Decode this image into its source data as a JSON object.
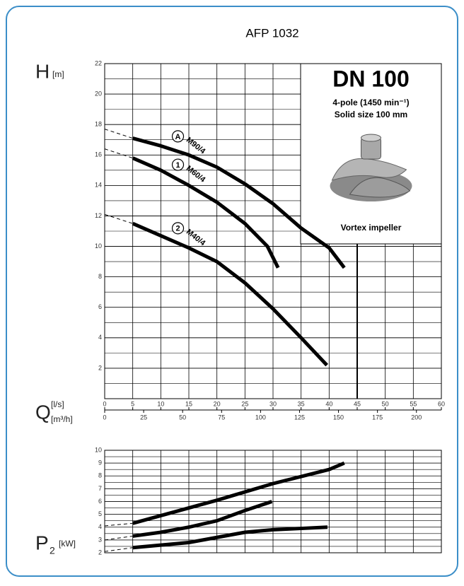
{
  "chart_data": [
    {
      "type": "line",
      "title": "AFP 1032",
      "y_label": "H",
      "y_unit": "[m]",
      "x_label": "Q",
      "x_unit": "[l/s]",
      "x2_unit": "[m³/h]",
      "xlim": [
        0,
        60
      ],
      "xticks": [
        0,
        5,
        10,
        15,
        20,
        25,
        30,
        35,
        40,
        45,
        50,
        55,
        60
      ],
      "x2lim": [
        0,
        216
      ],
      "x2ticks": [
        0,
        25,
        50,
        75,
        100,
        125,
        150,
        175,
        200
      ],
      "ylim": [
        0,
        22
      ],
      "yticks": [
        2,
        4,
        6,
        8,
        10,
        12,
        14,
        16,
        18,
        20,
        22
      ],
      "grid": true,
      "limit_x": 45,
      "box": {
        "title": "DN 100",
        "subtitle": "4-pole (1450 min⁻¹)",
        "detail": "Solid size 100 mm",
        "caption": "Vortex impeller"
      },
      "series": [
        {
          "name": "M90/4",
          "marker": "A",
          "color": "#000000",
          "x": [
            0,
            5,
            10,
            15,
            20,
            25,
            30,
            35,
            40,
            42.7
          ],
          "values": [
            17.7,
            17.1,
            16.6,
            16,
            15.2,
            14.1,
            12.8,
            11.2,
            9.9,
            8.6
          ]
        },
        {
          "name": "M60/4",
          "marker": "1",
          "color": "#000000",
          "x": [
            0,
            5,
            10,
            15,
            20,
            25,
            29,
            30.9
          ],
          "values": [
            16.4,
            15.8,
            15,
            14,
            12.9,
            11.5,
            10,
            8.6
          ]
        },
        {
          "name": "M40/4",
          "marker": "2",
          "color": "#000000",
          "x": [
            0,
            5,
            10,
            15,
            20,
            25,
            30,
            35,
            39.6
          ],
          "values": [
            12.1,
            11.5,
            10.7,
            9.9,
            9,
            7.6,
            5.9,
            4,
            2.2
          ]
        }
      ]
    },
    {
      "type": "line",
      "y_label": "P",
      "y_sub": "2",
      "y_unit": "[kW]",
      "xlim": [
        0,
        60
      ],
      "ylim": [
        2,
        10
      ],
      "yticks": [
        2,
        3,
        4,
        5,
        6,
        7,
        8,
        9,
        10
      ],
      "grid": true,
      "series": [
        {
          "color": "#000000",
          "x": [
            0,
            5,
            10,
            20,
            30,
            40,
            42.7
          ],
          "values": [
            4.1,
            4.3,
            4.9,
            6.1,
            7.4,
            8.5,
            9
          ]
        },
        {
          "color": "#000000",
          "x": [
            0,
            5,
            10,
            15,
            20,
            25,
            29.8
          ],
          "values": [
            3,
            3.3,
            3.6,
            4,
            4.5,
            5.3,
            6
          ]
        },
        {
          "color": "#000000",
          "x": [
            0,
            5,
            10,
            15,
            20,
            25,
            30,
            35,
            39.7
          ],
          "values": [
            2.1,
            2.4,
            2.6,
            2.8,
            3.2,
            3.6,
            3.8,
            3.9,
            4
          ]
        }
      ]
    }
  ]
}
